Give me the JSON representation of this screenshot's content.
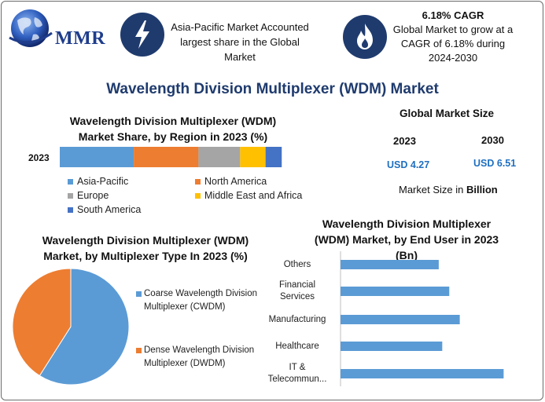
{
  "brand": {
    "logo_text": "MMR"
  },
  "facts": {
    "left": {
      "text": "Asia-Pacific Market Accounted largest share in the Global Market",
      "icon": "lightning-icon"
    },
    "right": {
      "headline": "6.18% CAGR",
      "text": "Global Market to grow at a CAGR of 6.18% during 2024-2030",
      "icon": "flame-icon"
    }
  },
  "title": "Wavelength Division Multiplexer (WDM) Market",
  "market_size": {
    "title": "Global Market Size",
    "years": [
      "2023",
      "2030"
    ],
    "values": [
      "USD 4.27",
      "USD 6.51"
    ],
    "note_prefix": "Market Size in ",
    "note_unit": "Billion"
  },
  "chart_data": [
    {
      "type": "bar",
      "orientation": "horizontal-stacked",
      "title": "Wavelength Division Multiplexer (WDM) Market Share, by Region in 2023 (%)",
      "categories": [
        "2023"
      ],
      "series": [
        {
          "name": "Asia-Pacific",
          "values": [
            32
          ],
          "color": "#5b9bd5"
        },
        {
          "name": "North America",
          "values": [
            28
          ],
          "color": "#ed7d31"
        },
        {
          "name": "Europe",
          "values": [
            18
          ],
          "color": "#a5a5a5"
        },
        {
          "name": "Middle East and Africa",
          "values": [
            11
          ],
          "color": "#ffc000"
        },
        {
          "name": "South America",
          "values": [
            7
          ],
          "color": "#4472c4"
        }
      ],
      "xlim": [
        0,
        100
      ],
      "legend": "bottom"
    },
    {
      "type": "pie",
      "title": "Wavelength Division Multiplexer (WDM) Market, by Multiplexer Type In 2023 (%)",
      "labels": [
        "Coarse Wavelength Division Multiplexer (CWDM)",
        "Dense Wavelength Division Multiplexer (DWDM)"
      ],
      "values": [
        59,
        41
      ],
      "colors": [
        "#5b9bd5",
        "#ed7d31"
      ],
      "legend": "right"
    },
    {
      "type": "bar",
      "orientation": "horizontal",
      "title": "Wavelength Division Multiplexer (WDM) Market, by End User in 2023 (Bn)",
      "categories": [
        "Others",
        "Financial Services",
        "Manufacturing",
        "Healthcare",
        "IT & Telecommun..."
      ],
      "category_lines": [
        [
          "Others"
        ],
        [
          "Financial",
          "Services"
        ],
        [
          "Manufacturing"
        ],
        [
          "Healthcare"
        ],
        [
          "IT &",
          "Telecommun..."
        ]
      ],
      "values": [
        0.56,
        0.62,
        0.68,
        0.58,
        0.93
      ],
      "color": "#5b9bd5",
      "xlim": [
        0,
        1.0
      ],
      "grid": false
    }
  ]
}
